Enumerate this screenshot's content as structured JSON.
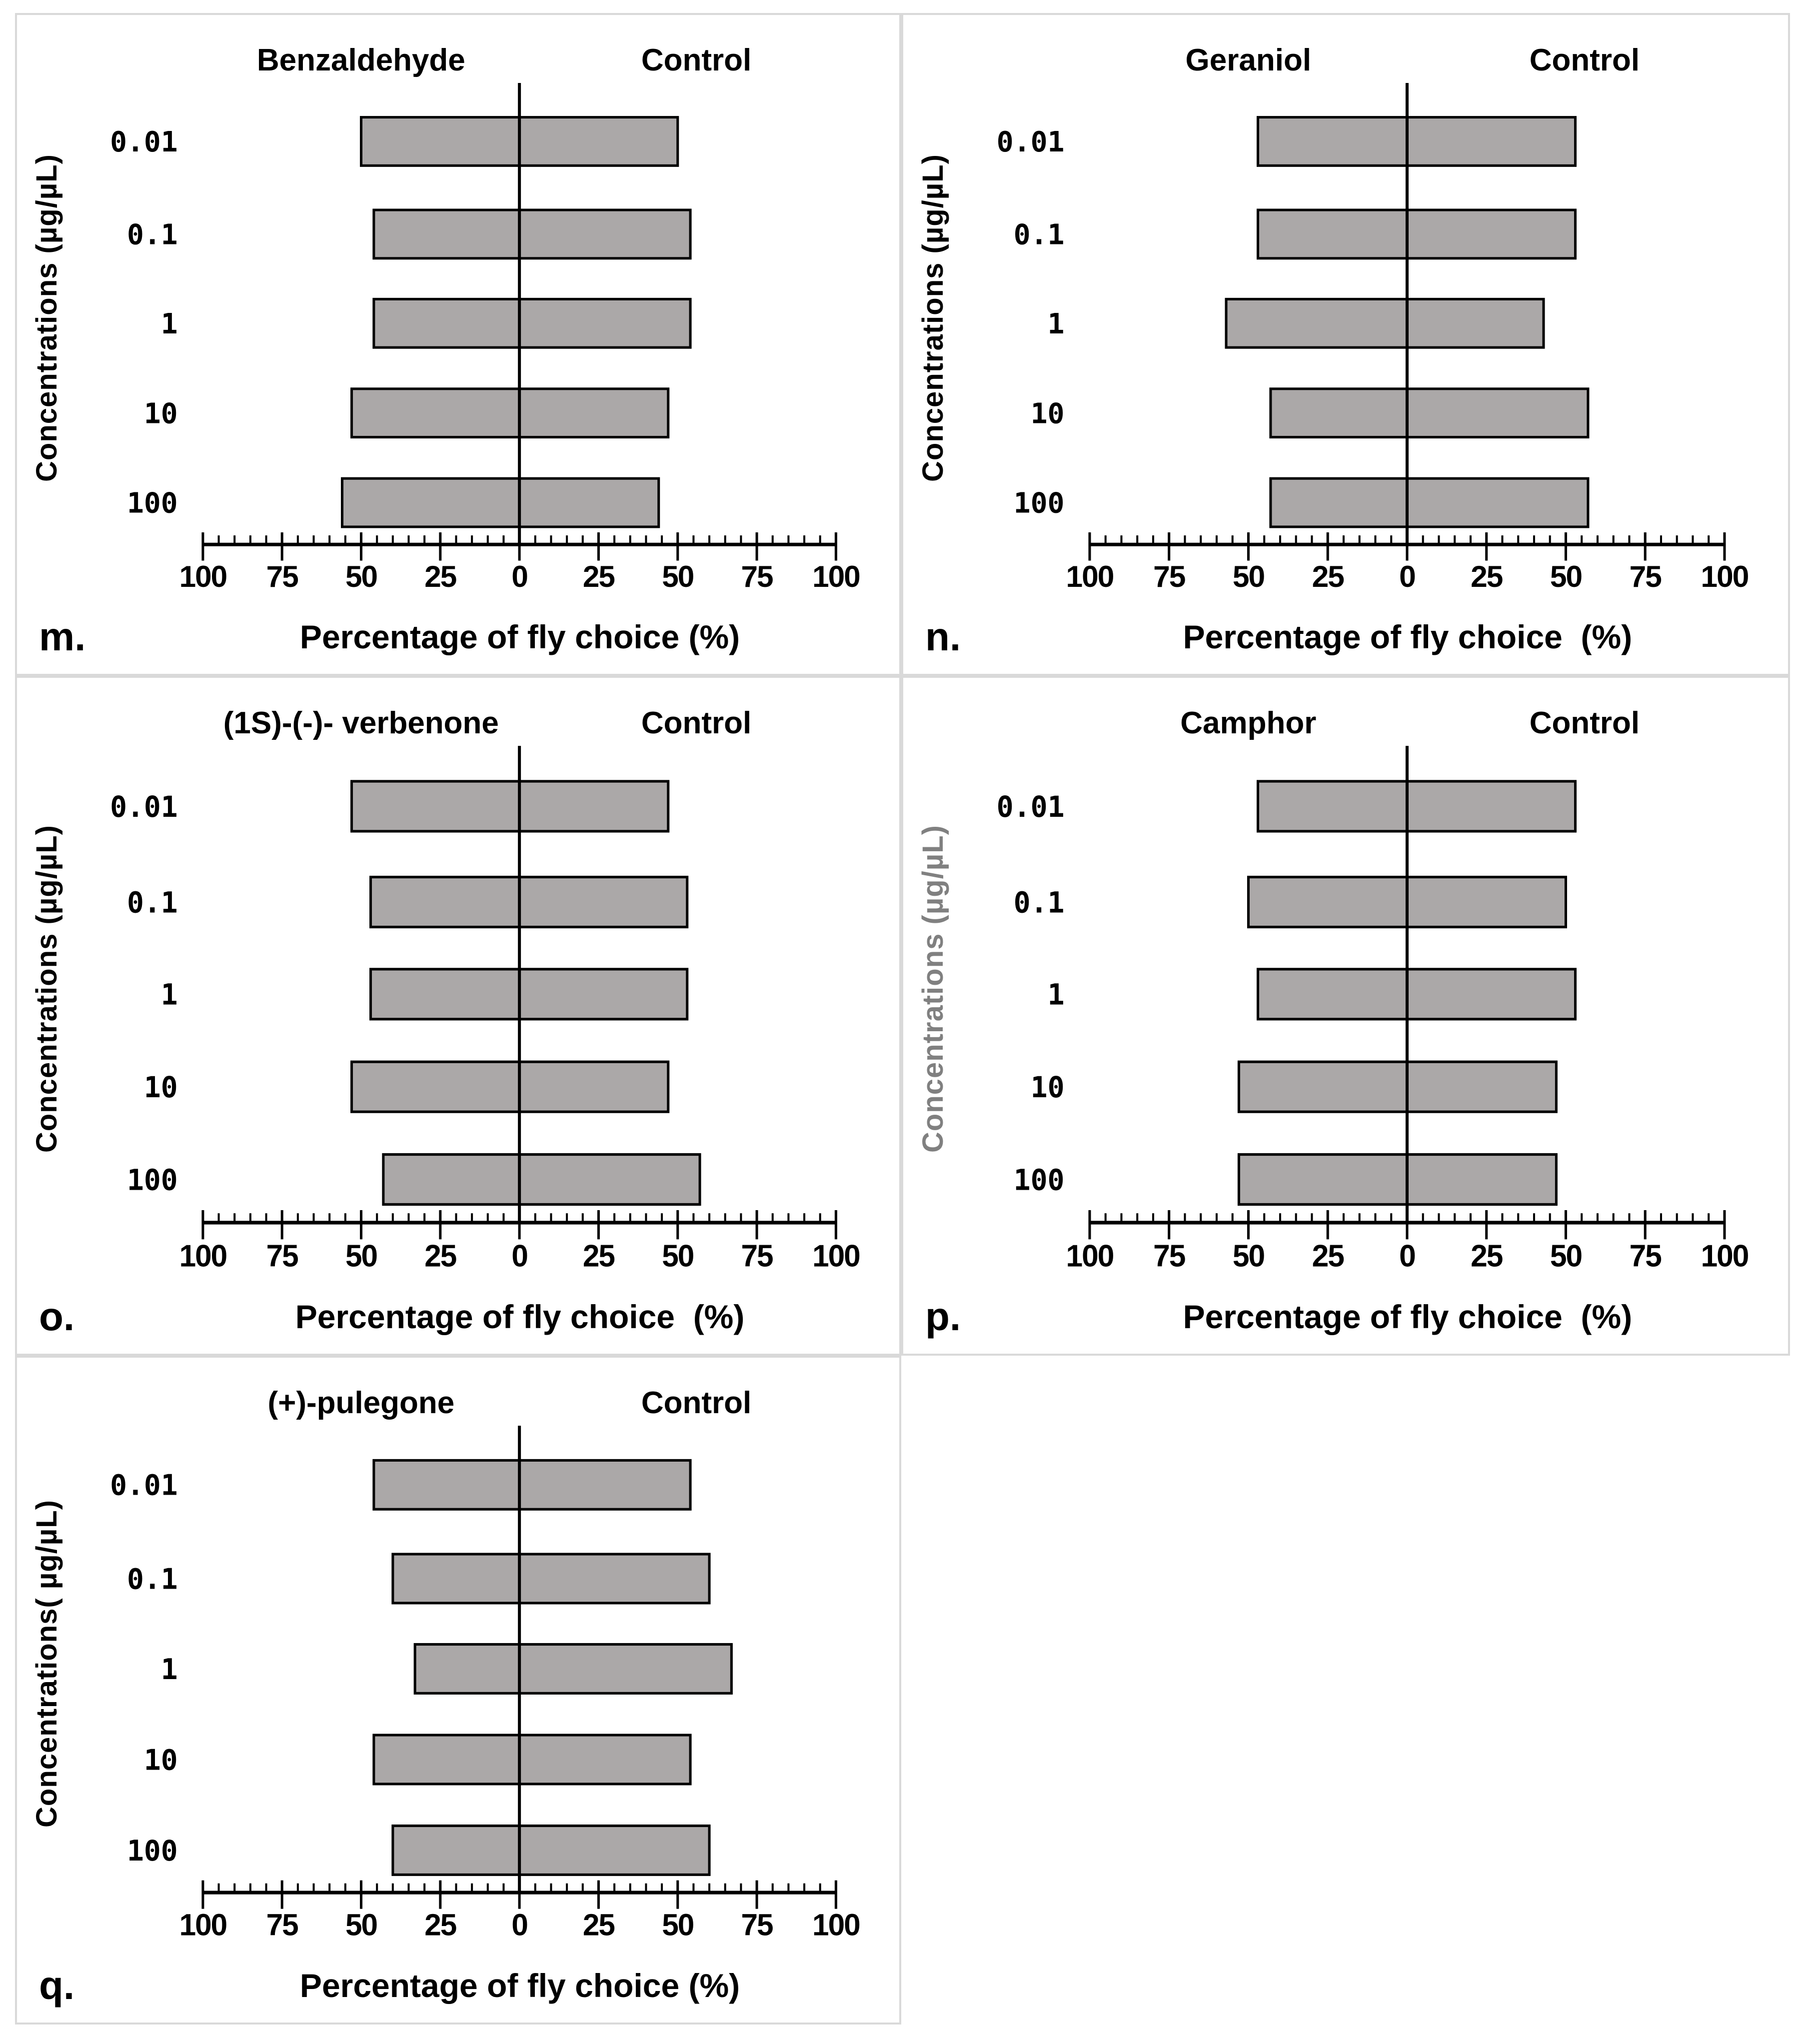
{
  "figure": {
    "background": "#ffffff",
    "panel_border_color": "#d9d9d9",
    "bar_fill": "#aba8a8",
    "bar_stroke": "#000000",
    "axis_color": "#000000"
  },
  "chart_data": [
    {
      "type": "bar",
      "orientation": "horizontal-diverging",
      "panel_label": "m.",
      "title_left": "Benzaldehyde",
      "title_right": "Control",
      "ylabel": "Concentrations (µg/µL)",
      "ylabel_color": "#000000",
      "xlabel": "Percentage of fly choice (%)",
      "categories": [
        "0.01",
        "0.1",
        "1",
        "10",
        "100"
      ],
      "series": [
        {
          "name": "Benzaldehyde",
          "side": "left",
          "values": [
            50,
            46,
            46,
            53,
            56
          ]
        },
        {
          "name": "Control",
          "side": "right",
          "values": [
            50,
            54,
            54,
            47,
            44
          ]
        }
      ],
      "xlim": [
        -100,
        100
      ],
      "xtick_step": 25,
      "minor_tick_step": 5,
      "xtick_labels": [
        "100",
        "75",
        "50",
        "25",
        "0",
        "25",
        "50",
        "75",
        "100"
      ],
      "grid": false
    },
    {
      "type": "bar",
      "orientation": "horizontal-diverging",
      "panel_label": "n.",
      "title_left": "Geraniol",
      "title_right": "Control",
      "ylabel": "Concentrations (µg/µL)",
      "ylabel_color": "#000000",
      "xlabel": "Percentage of fly choice  (%)",
      "categories": [
        "0.01",
        "0.1",
        "1",
        "10",
        "100"
      ],
      "series": [
        {
          "name": "Geraniol",
          "side": "left",
          "values": [
            47,
            47,
            57,
            43,
            43
          ]
        },
        {
          "name": "Control",
          "side": "right",
          "values": [
            53,
            53,
            43,
            57,
            57
          ]
        }
      ],
      "xlim": [
        -100,
        100
      ],
      "xtick_step": 25,
      "minor_tick_step": 5,
      "xtick_labels": [
        "100",
        "75",
        "50",
        "25",
        "0",
        "25",
        "50",
        "75",
        "100"
      ],
      "grid": false
    },
    {
      "type": "bar",
      "orientation": "horizontal-diverging",
      "panel_label": "o.",
      "title_left": "(1S)-(-)- verbenone",
      "title_right": "Control",
      "ylabel": "Concentrations (µg/µL)",
      "ylabel_color": "#000000",
      "xlabel": "Percentage of fly choice  (%)",
      "categories": [
        "0.01",
        "0.1",
        "1",
        "10",
        "100"
      ],
      "series": [
        {
          "name": "(1S)-(-)- verbenone",
          "side": "left",
          "values": [
            53,
            47,
            47,
            53,
            43
          ]
        },
        {
          "name": "Control",
          "side": "right",
          "values": [
            47,
            53,
            53,
            47,
            57
          ]
        }
      ],
      "xlim": [
        -100,
        100
      ],
      "xtick_step": 25,
      "minor_tick_step": 5,
      "xtick_labels": [
        "100",
        "75",
        "50",
        "25",
        "0",
        "25",
        "50",
        "75",
        "100"
      ],
      "grid": false
    },
    {
      "type": "bar",
      "orientation": "horizontal-diverging",
      "panel_label": "p.",
      "title_left": "Camphor",
      "title_right": "Control",
      "ylabel": "Concentrations (µg/µL)",
      "ylabel_color": "#808080",
      "xlabel": "Percentage of fly choice  (%)",
      "categories": [
        "0.01",
        "0.1",
        "1",
        "10",
        "100"
      ],
      "series": [
        {
          "name": "Camphor",
          "side": "left",
          "values": [
            47,
            50,
            47,
            53,
            53
          ]
        },
        {
          "name": "Control",
          "side": "right",
          "values": [
            53,
            50,
            53,
            47,
            47
          ]
        }
      ],
      "xlim": [
        -100,
        100
      ],
      "xtick_step": 25,
      "minor_tick_step": 5,
      "xtick_labels": [
        "100",
        "75",
        "50",
        "25",
        "0",
        "25",
        "50",
        "75",
        "100"
      ],
      "grid": false
    },
    {
      "type": "bar",
      "orientation": "horizontal-diverging",
      "panel_label": "q.",
      "title_left": "(+)-pulegone",
      "title_right": "Control",
      "ylabel": "Concentrations( µg/µL)",
      "ylabel_color": "#000000",
      "xlabel": "Percentage of fly choice (%)",
      "categories": [
        "0.01",
        "0.1",
        "1",
        "10",
        "100"
      ],
      "series": [
        {
          "name": "(+)-pulegone",
          "side": "left",
          "values": [
            46,
            40,
            33,
            46,
            40
          ]
        },
        {
          "name": "Control",
          "side": "right",
          "values": [
            54,
            60,
            67,
            54,
            60
          ]
        }
      ],
      "xlim": [
        -100,
        100
      ],
      "xtick_step": 25,
      "minor_tick_step": 5,
      "xtick_labels": [
        "100",
        "75",
        "50",
        "25",
        "0",
        "25",
        "50",
        "75",
        "100"
      ],
      "grid": false
    }
  ]
}
